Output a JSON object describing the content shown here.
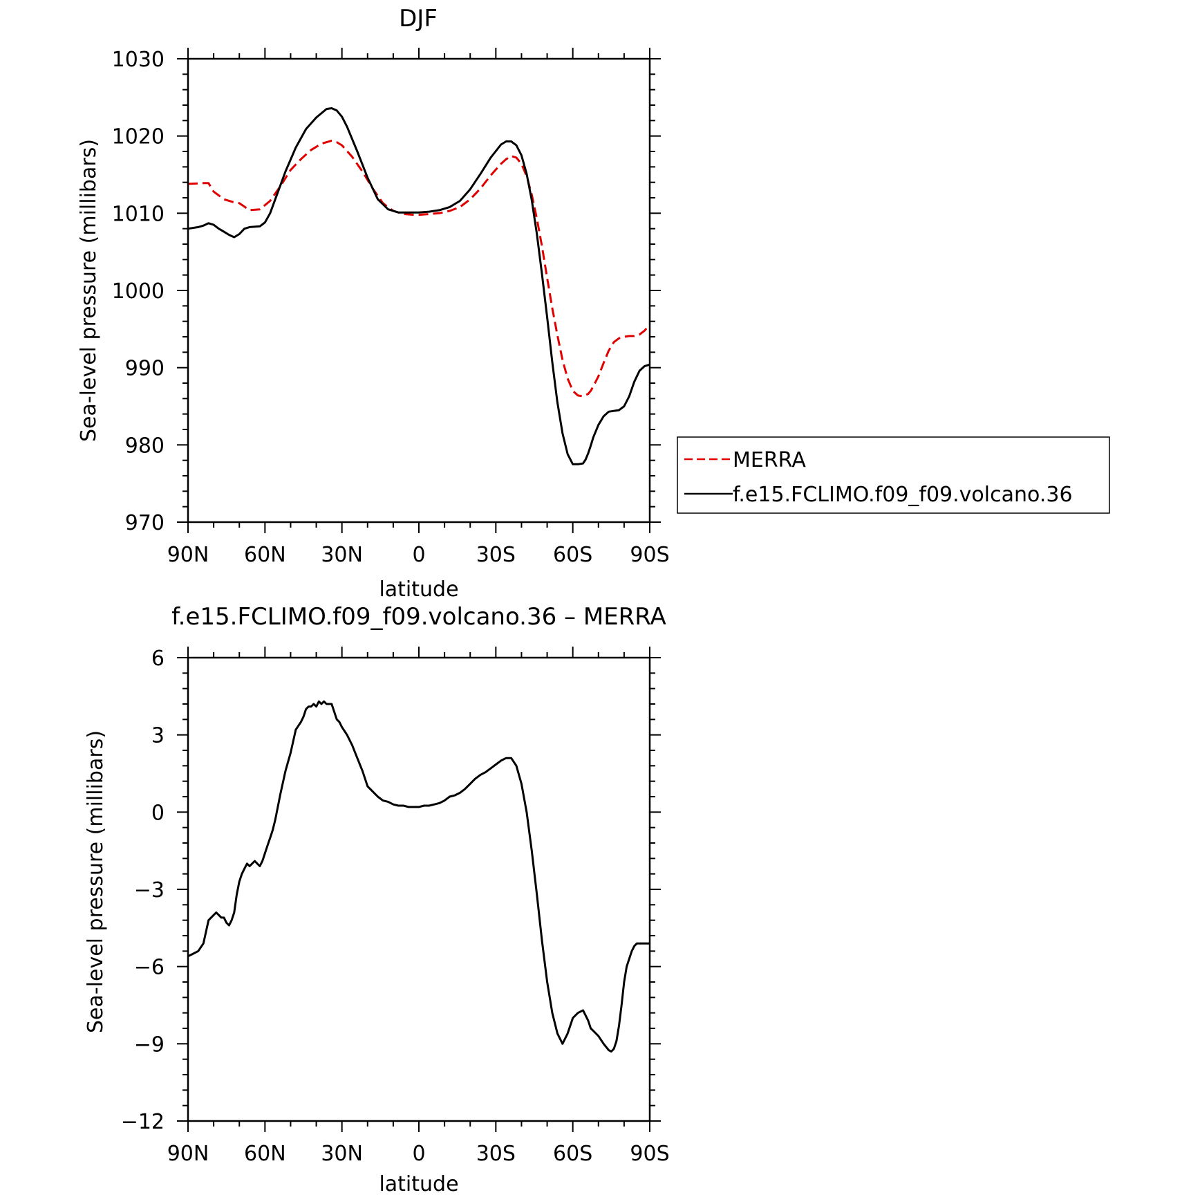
{
  "colors": {
    "merra": "#e00000",
    "model": "#000000",
    "axes": "#000000"
  },
  "chart_data": [
    {
      "type": "line",
      "title": "DJF",
      "xlabel": "latitude",
      "ylabel": "Sea-level pressure (millibars)",
      "xlim": [
        90,
        -90
      ],
      "ylim": [
        970,
        1030
      ],
      "xticks": [
        90,
        60,
        30,
        0,
        -30,
        -60,
        -90
      ],
      "xtick_labels": [
        "90N",
        "60N",
        "30N",
        "0",
        "30S",
        "60S",
        "90S"
      ],
      "yticks": [
        970,
        980,
        990,
        1000,
        1010,
        1020,
        1030
      ],
      "ytick_labels": [
        "970",
        "980",
        "990",
        "1000",
        "1010",
        "1020",
        "1030"
      ],
      "legend_position": "right",
      "series": [
        {
          "name": "MERRA",
          "style": "dashed",
          "x": [
            90,
            84,
            82,
            80,
            76,
            72,
            70,
            66,
            62,
            58,
            54,
            50,
            46,
            42,
            38,
            34,
            32,
            30,
            26,
            22,
            18,
            14,
            10,
            6,
            2,
            0,
            -4,
            -8,
            -12,
            -16,
            -20,
            -24,
            -28,
            -32,
            -34,
            -36,
            -38,
            -40,
            -42,
            -44,
            -46,
            -48,
            -50,
            -52,
            -54,
            -56,
            -58,
            -60,
            -62,
            -64,
            -66,
            -67,
            -68,
            -70,
            -72,
            -74,
            -76,
            -78,
            -80,
            -82,
            -84,
            -86,
            -88,
            -90
          ],
          "y": [
            1013.8,
            1013.9,
            1013.9,
            1012.8,
            1011.8,
            1011.4,
            1011.3,
            1010.4,
            1010.5,
            1011.6,
            1013.5,
            1015.6,
            1017.0,
            1018.2,
            1019.0,
            1019.4,
            1019.2,
            1018.8,
            1017.3,
            1015.4,
            1013.2,
            1011.3,
            1010.3,
            1009.9,
            1009.8,
            1009.8,
            1009.9,
            1010.0,
            1010.3,
            1010.8,
            1011.8,
            1013.2,
            1014.9,
            1016.4,
            1017.0,
            1017.4,
            1017.2,
            1016.4,
            1014.8,
            1012.4,
            1009.3,
            1005.7,
            1001.6,
            997.7,
            994.2,
            991.0,
            988.6,
            987.0,
            986.4,
            986.3,
            986.6,
            987.0,
            987.6,
            988.9,
            990.6,
            992.2,
            993.3,
            993.8,
            994.0,
            994.1,
            994.1,
            994.3,
            994.8,
            995.6
          ]
        },
        {
          "name": "f.e15.FCLIMO.f09_f09.volcano.36",
          "style": "solid",
          "x": [
            90,
            86,
            84,
            82,
            80,
            78,
            76,
            74,
            72,
            70,
            68,
            66,
            62,
            60,
            58,
            56,
            52,
            48,
            44,
            40,
            36,
            34,
            32,
            30,
            28,
            24,
            20,
            16,
            12,
            8,
            4,
            0,
            -4,
            -8,
            -12,
            -16,
            -20,
            -24,
            -28,
            -32,
            -34,
            -36,
            -38,
            -40,
            -42,
            -44,
            -46,
            -48,
            -50,
            -52,
            -54,
            -56,
            -58,
            -60,
            -62,
            -64,
            -65,
            -66,
            -67,
            -68,
            -70,
            -72,
            -74,
            -76,
            -78,
            -80,
            -82,
            -84,
            -86,
            -88,
            -90
          ],
          "y": [
            1008.0,
            1008.2,
            1008.4,
            1008.7,
            1008.5,
            1008.0,
            1007.6,
            1007.2,
            1006.9,
            1007.3,
            1008.0,
            1008.2,
            1008.3,
            1008.8,
            1010.0,
            1011.8,
            1015.4,
            1018.5,
            1020.9,
            1022.4,
            1023.5,
            1023.6,
            1023.3,
            1022.5,
            1021.2,
            1018.0,
            1014.6,
            1011.8,
            1010.5,
            1010.1,
            1010.1,
            1010.1,
            1010.2,
            1010.4,
            1010.8,
            1011.6,
            1013.1,
            1015.1,
            1017.2,
            1018.9,
            1019.3,
            1019.3,
            1018.8,
            1017.5,
            1015.1,
            1011.7,
            1007.3,
            1002.1,
            996.5,
            990.7,
            985.5,
            981.5,
            978.8,
            977.5,
            977.5,
            977.6,
            978.1,
            978.9,
            979.9,
            981.0,
            982.6,
            983.7,
            984.3,
            984.4,
            984.5,
            985.0,
            986.3,
            988.2,
            989.6,
            990.2,
            990.4
          ]
        }
      ]
    },
    {
      "type": "line",
      "title": "f.e15.FCLIMO.f09_f09.volcano.36 – MERRA",
      "xlabel": "latitude",
      "ylabel": "Sea-level pressure (millibars)",
      "xlim": [
        90,
        -90
      ],
      "ylim": [
        -12,
        6
      ],
      "xticks": [
        90,
        60,
        30,
        0,
        -30,
        -60,
        -90
      ],
      "xtick_labels": [
        "90N",
        "60N",
        "30N",
        "0",
        "30S",
        "60S",
        "90S"
      ],
      "yticks": [
        -12,
        -9,
        -6,
        -3,
        0,
        3,
        6
      ],
      "ytick_labels": [
        "−12",
        "−9",
        "−6",
        "−3",
        "0",
        "3",
        "6"
      ],
      "series": [
        {
          "style": "solid",
          "x": [
            90,
            88,
            86,
            84,
            82,
            80,
            79,
            78,
            77,
            76,
            75,
            74,
            73,
            72,
            71,
            70,
            69,
            68,
            67,
            66,
            65,
            64,
            63,
            62,
            61,
            60,
            59,
            58,
            57,
            56,
            54,
            52,
            50,
            48,
            46,
            45,
            44,
            43,
            42,
            41,
            40,
            39,
            38,
            37,
            36,
            35,
            34,
            33,
            32,
            31,
            30,
            28,
            26,
            24,
            22,
            20,
            18,
            16,
            14,
            12,
            10,
            8,
            6,
            4,
            2,
            0,
            -2,
            -4,
            -6,
            -8,
            -10,
            -12,
            -14,
            -16,
            -18,
            -20,
            -22,
            -24,
            -26,
            -28,
            -30,
            -32,
            -34,
            -36,
            -38,
            -40,
            -42,
            -44,
            -46,
            -48,
            -50,
            -52,
            -54,
            -56,
            -58,
            -60,
            -62,
            -64,
            -66,
            -67,
            -68,
            -70,
            -72,
            -74,
            -75,
            -76,
            -77,
            -78,
            -79,
            -80,
            -81,
            -82,
            -83,
            -84,
            -85,
            -86,
            -87,
            -88,
            -89,
            -90
          ],
          "y": [
            -5.6,
            -5.5,
            -5.4,
            -5.1,
            -4.2,
            -4.0,
            -3.9,
            -4.0,
            -4.1,
            -4.1,
            -4.3,
            -4.4,
            -4.2,
            -3.9,
            -3.2,
            -2.7,
            -2.4,
            -2.2,
            -2.0,
            -2.1,
            -2.0,
            -1.9,
            -2.0,
            -2.1,
            -1.9,
            -1.6,
            -1.3,
            -1.0,
            -0.7,
            -0.3,
            0.7,
            1.6,
            2.3,
            3.2,
            3.5,
            3.7,
            4.0,
            4.1,
            4.1,
            4.2,
            4.1,
            4.3,
            4.2,
            4.3,
            4.2,
            4.2,
            4.2,
            3.9,
            3.6,
            3.5,
            3.3,
            3.0,
            2.6,
            2.1,
            1.6,
            1.0,
            0.8,
            0.6,
            0.45,
            0.4,
            0.3,
            0.25,
            0.25,
            0.2,
            0.2,
            0.2,
            0.25,
            0.25,
            0.3,
            0.35,
            0.45,
            0.6,
            0.65,
            0.75,
            0.9,
            1.1,
            1.3,
            1.45,
            1.55,
            1.7,
            1.85,
            2.0,
            2.1,
            2.1,
            1.8,
            1.1,
            0.0,
            -1.5,
            -3.2,
            -5.0,
            -6.6,
            -7.8,
            -8.6,
            -9.0,
            -8.6,
            -8.0,
            -7.8,
            -7.7,
            -8.1,
            -8.4,
            -8.5,
            -8.7,
            -9.0,
            -9.25,
            -9.3,
            -9.2,
            -8.9,
            -8.3,
            -7.5,
            -6.6,
            -6.0,
            -5.7,
            -5.4,
            -5.2,
            -5.1,
            -5.1,
            -5.1,
            -5.1,
            -5.1,
            -5.1
          ]
        }
      ]
    }
  ]
}
